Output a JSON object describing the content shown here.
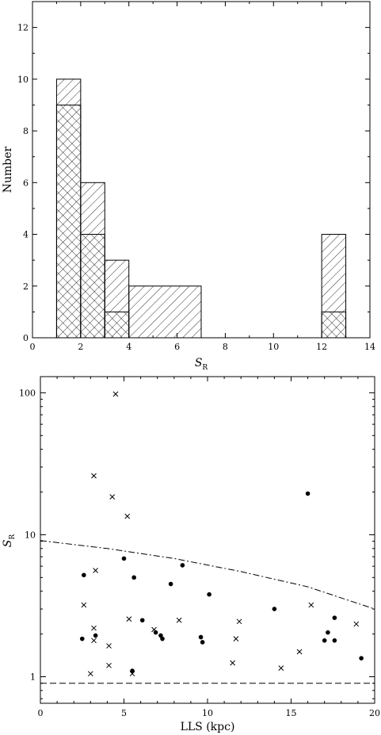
{
  "chart_data": [
    {
      "type": "bar",
      "title": "",
      "xlabel": "S",
      "xlabel_sub": "R",
      "ylabel": "Number",
      "xlim": [
        0,
        14
      ],
      "ylim": [
        0,
        13
      ],
      "xticks": [
        0,
        2,
        4,
        6,
        8,
        10,
        12,
        14
      ],
      "yticks": [
        0,
        2,
        4,
        6,
        8,
        10,
        12
      ],
      "bins": [
        {
          "x0": 1,
          "x1": 2,
          "total": 10,
          "subset": 9
        },
        {
          "x0": 2,
          "x1": 3,
          "total": 6,
          "subset": 4
        },
        {
          "x0": 3,
          "x1": 4,
          "total": 3,
          "subset": 1
        },
        {
          "x0": 4,
          "x1": 7,
          "total": 2,
          "subset": 0
        },
        {
          "x0": 12,
          "x1": 13,
          "total": 4,
          "subset": 1
        }
      ],
      "grid": false
    },
    {
      "type": "scatter",
      "title": "",
      "xlabel": "LLS (kpc)",
      "ylabel": "S",
      "ylabel_sub": "R",
      "xlim": [
        0,
        20
      ],
      "ylim": [
        0.65,
        130
      ],
      "yscale": "log",
      "xticks": [
        0,
        5,
        10,
        15,
        20
      ],
      "yticks": [
        1,
        10,
        100
      ],
      "series": [
        {
          "marker": "dot",
          "points": [
            [
              2.5,
              1.85
            ],
            [
              2.6,
              5.2
            ],
            [
              3.3,
              1.95
            ],
            [
              5.0,
              6.8
            ],
            [
              5.5,
              1.1
            ],
            [
              5.6,
              5.0
            ],
            [
              6.1,
              2.5
            ],
            [
              6.9,
              2.05
            ],
            [
              7.2,
              1.95
            ],
            [
              7.3,
              1.85
            ],
            [
              7.8,
              4.5
            ],
            [
              8.5,
              6.1
            ],
            [
              9.6,
              1.9
            ],
            [
              9.7,
              1.75
            ],
            [
              10.1,
              3.8
            ],
            [
              14.0,
              3.0
            ],
            [
              16.0,
              19.5
            ],
            [
              17.0,
              1.8
            ],
            [
              17.2,
              2.05
            ],
            [
              17.6,
              2.6
            ],
            [
              17.6,
              1.8
            ],
            [
              19.2,
              1.35
            ]
          ]
        },
        {
          "marker": "cross",
          "points": [
            [
              2.6,
              3.2
            ],
            [
              3.0,
              1.05
            ],
            [
              3.2,
              26.0
            ],
            [
              3.2,
              1.8
            ],
            [
              3.2,
              2.2
            ],
            [
              3.3,
              5.6
            ],
            [
              4.1,
              1.65
            ],
            [
              4.1,
              1.2
            ],
            [
              4.3,
              18.5
            ],
            [
              4.5,
              98.0
            ],
            [
              5.2,
              13.5
            ],
            [
              5.3,
              2.55
            ],
            [
              5.5,
              1.05
            ],
            [
              6.8,
              2.15
            ],
            [
              8.3,
              2.5
            ],
            [
              11.5,
              1.25
            ],
            [
              11.7,
              1.85
            ],
            [
              11.9,
              2.45
            ],
            [
              14.4,
              1.15
            ],
            [
              15.5,
              1.5
            ],
            [
              16.2,
              3.2
            ],
            [
              18.9,
              2.35
            ]
          ]
        }
      ],
      "curves": [
        {
          "style": "dash-dot",
          "points": [
            [
              0,
              9.1
            ],
            [
              4,
              8.0
            ],
            [
              8,
              6.8
            ],
            [
              12,
              5.5
            ],
            [
              16,
              4.3
            ],
            [
              20,
              3.0
            ]
          ]
        },
        {
          "style": "dashed",
          "points": [
            [
              0,
              0.9
            ],
            [
              20,
              0.9
            ]
          ]
        }
      ],
      "grid": false
    }
  ]
}
